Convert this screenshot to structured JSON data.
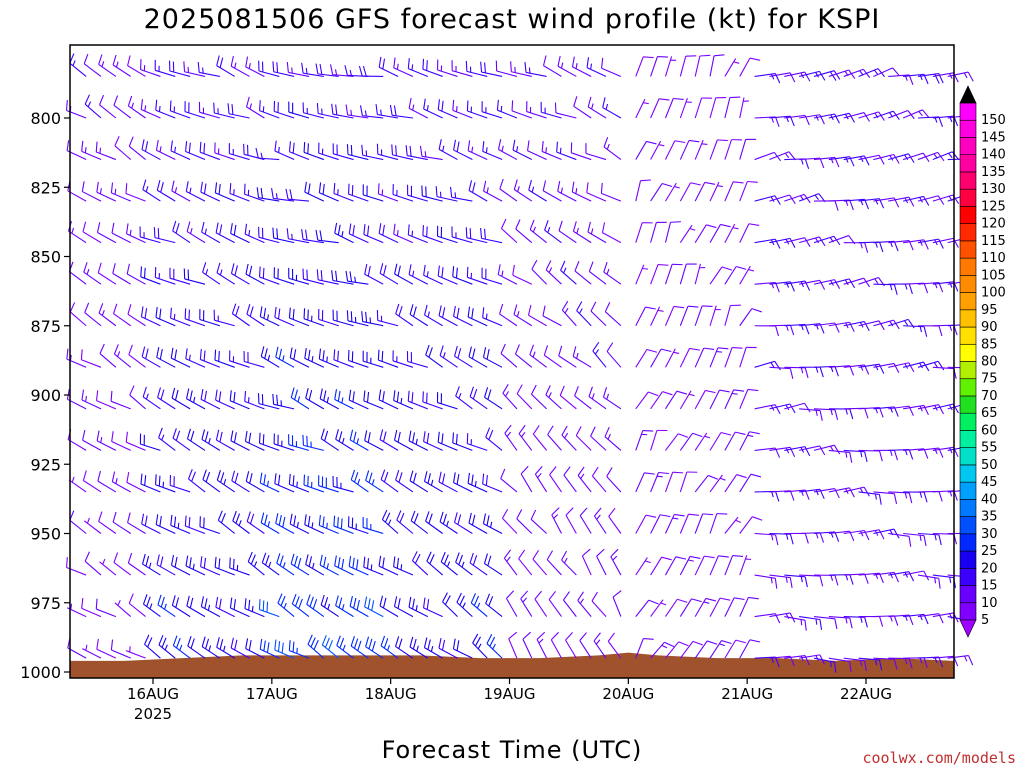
{
  "chart_data": {
    "type": "wind_barb_time_height",
    "title": "2025081506 GFS forecast wind profile (kt) for KSPI",
    "xlabel": "Forecast Time (UTC)",
    "x_ticks": [
      {
        "label": "16AUG",
        "sublabel": "2025",
        "t": 18
      },
      {
        "label": "17AUG",
        "sublabel": "",
        "t": 42
      },
      {
        "label": "18AUG",
        "sublabel": "",
        "t": 66
      },
      {
        "label": "19AUG",
        "sublabel": "",
        "t": 90
      },
      {
        "label": "20AUG",
        "sublabel": "",
        "t": 114
      },
      {
        "label": "21AUG",
        "sublabel": "",
        "t": 138
      },
      {
        "label": "22AUG",
        "sublabel": "",
        "t": 162
      }
    ],
    "x_range_hours": [
      0,
      180
    ],
    "y_axis": {
      "scale": "pressure",
      "ticks": [
        800,
        825,
        850,
        875,
        900,
        925,
        950,
        975,
        1000
      ],
      "range": [
        775,
        1000
      ]
    },
    "time_step_hours": 3,
    "levels": [
      785,
      800,
      815,
      830,
      845,
      860,
      875,
      890,
      905,
      920,
      935,
      950,
      965,
      980,
      995
    ],
    "phases": [
      {
        "t_start": 0,
        "t_end": 18,
        "upper": {
          "dir": 300,
          "spd": 12
        },
        "low": {
          "dir": 300,
          "spd": 8
        }
      },
      {
        "t_start": 18,
        "t_end": 42,
        "upper": {
          "dir": 290,
          "spd": 15
        },
        "low": {
          "dir": 300,
          "spd": 22
        }
      },
      {
        "t_start": 42,
        "t_end": 66,
        "upper": {
          "dir": 280,
          "spd": 16
        },
        "low": {
          "dir": 300,
          "spd": 28
        }
      },
      {
        "t_start": 66,
        "t_end": 90,
        "upper": {
          "dir": 285,
          "spd": 15
        },
        "low": {
          "dir": 305,
          "spd": 22
        }
      },
      {
        "t_start": 90,
        "t_end": 114,
        "upper": {
          "dir": 290,
          "spd": 13
        },
        "low": {
          "dir": 330,
          "spd": 10
        }
      },
      {
        "t_start": 114,
        "t_end": 138,
        "upper": {
          "dir": 20,
          "spd": 8
        },
        "low": {
          "dir": 30,
          "spd": 10
        }
      },
      {
        "t_start": 138,
        "t_end": 180,
        "upper": {
          "dir": 75,
          "spd": 14
        },
        "low": {
          "dir": 90,
          "spd": 13
        }
      }
    ],
    "surface_pressure": [
      {
        "t": 0,
        "p": 996
      },
      {
        "t": 12,
        "p": 996
      },
      {
        "t": 24,
        "p": 995
      },
      {
        "t": 36,
        "p": 994
      },
      {
        "t": 48,
        "p": 994
      },
      {
        "t": 60,
        "p": 994
      },
      {
        "t": 72,
        "p": 994
      },
      {
        "t": 84,
        "p": 995
      },
      {
        "t": 96,
        "p": 995
      },
      {
        "t": 108,
        "p": 994
      },
      {
        "t": 114,
        "p": 993
      },
      {
        "t": 120,
        "p": 994
      },
      {
        "t": 132,
        "p": 995
      },
      {
        "t": 144,
        "p": 995
      },
      {
        "t": 156,
        "p": 996
      },
      {
        "t": 168,
        "p": 995
      },
      {
        "t": 180,
        "p": 996
      }
    ],
    "colorbar": {
      "values": [
        5,
        10,
        15,
        20,
        25,
        30,
        35,
        40,
        45,
        50,
        55,
        60,
        65,
        70,
        75,
        80,
        85,
        90,
        95,
        100,
        105,
        110,
        115,
        120,
        125,
        130,
        135,
        140,
        145,
        150
      ],
      "colors": [
        "#8000ff",
        "#6a00ff",
        "#3c00ff",
        "#1a00f0",
        "#0028ff",
        "#0050ff",
        "#0078ff",
        "#00a0ff",
        "#00c8f0",
        "#00e0c8",
        "#00f0a0",
        "#00f060",
        "#20e020",
        "#60f000",
        "#b0f000",
        "#ffff00",
        "#ffe000",
        "#ffc000",
        "#ffa000",
        "#ff8c00",
        "#ff7800",
        "#ff5000",
        "#ff2800",
        "#ff0000",
        "#ff0040",
        "#ff0070",
        "#ff00a0",
        "#ff00c0",
        "#ff00e0",
        "#ff00ff"
      ],
      "top_arrow_color": "#000000",
      "bottom_arrow_color": "#a000ff"
    },
    "terrain_color": "#a0522d"
  },
  "footer": {
    "credit": "coolwx.com/models"
  }
}
